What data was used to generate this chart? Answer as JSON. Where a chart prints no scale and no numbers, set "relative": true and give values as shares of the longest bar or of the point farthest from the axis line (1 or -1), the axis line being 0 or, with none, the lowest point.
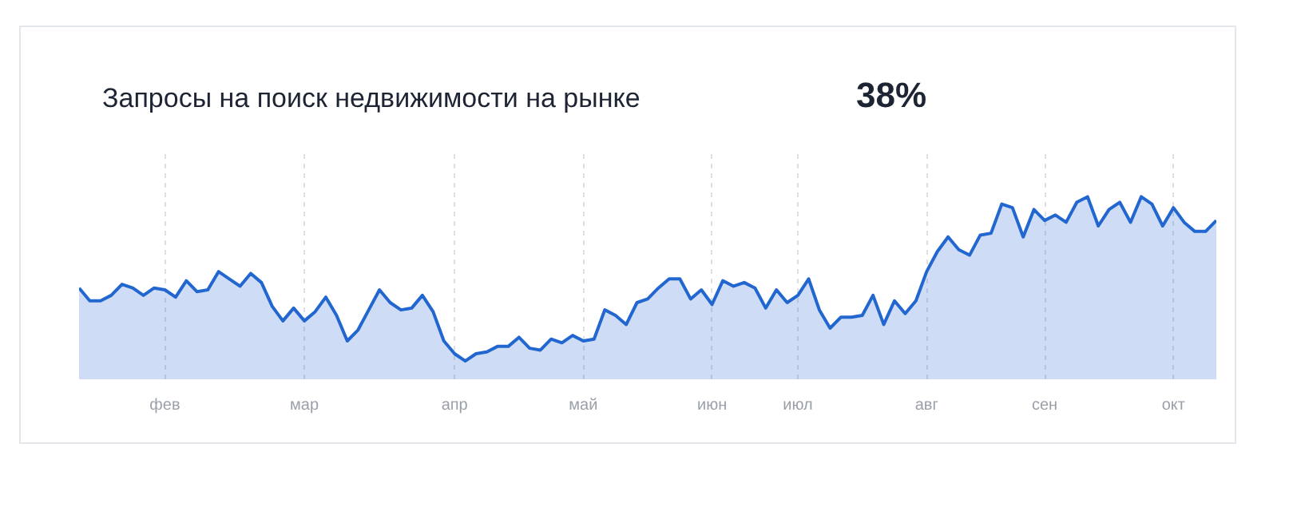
{
  "chart_data": {
    "type": "area",
    "title": "Запросы на поиск недвижимости на рынке",
    "annotations": [
      "38%"
    ],
    "relative": true,
    "grid": "x",
    "categories": [
      null,
      null,
      null,
      null,
      null,
      null,
      null,
      null,
      "фев",
      null,
      null,
      null,
      null,
      null,
      null,
      null,
      null,
      null,
      null,
      null,
      null,
      "мар",
      null,
      null,
      null,
      null,
      null,
      null,
      null,
      null,
      null,
      null,
      null,
      null,
      null,
      "апр",
      null,
      null,
      null,
      null,
      null,
      null,
      null,
      null,
      null,
      null,
      null,
      "май",
      null,
      null,
      null,
      null,
      null,
      null,
      null,
      null,
      null,
      null,
      null,
      "июн",
      null,
      null,
      null,
      null,
      null,
      null,
      null,
      "июл",
      null,
      null,
      null,
      null,
      null,
      null,
      null,
      null,
      null,
      null,
      null,
      "авг",
      null,
      null,
      null,
      null,
      null,
      null,
      null,
      null,
      null,
      null,
      "сен",
      null,
      null,
      null,
      null,
      null,
      null,
      null,
      null,
      null,
      null,
      null,
      "окт",
      null,
      null,
      null,
      null
    ],
    "series": [
      {
        "color": "#2266d0",
        "values": [
          0.5,
          0.43,
          0.43,
          0.46,
          0.52,
          0.5,
          0.46,
          0.5,
          0.49,
          0.45,
          0.54,
          0.48,
          0.49,
          0.59,
          0.55,
          0.51,
          0.58,
          0.53,
          0.4,
          0.32,
          0.39,
          0.32,
          0.37,
          0.45,
          0.35,
          0.21,
          0.27,
          0.38,
          0.49,
          0.42,
          0.38,
          0.39,
          0.46,
          0.37,
          0.21,
          0.14,
          0.1,
          0.14,
          0.15,
          0.18,
          0.18,
          0.23,
          0.17,
          0.16,
          0.22,
          0.2,
          0.24,
          0.21,
          0.22,
          0.38,
          0.35,
          0.3,
          0.42,
          0.44,
          0.5,
          0.55,
          0.55,
          0.44,
          0.49,
          0.41,
          0.54,
          0.51,
          0.53,
          0.5,
          0.39,
          0.49,
          0.42,
          0.46,
          0.55,
          0.38,
          0.28,
          0.34,
          0.34,
          0.35,
          0.46,
          0.3,
          0.43,
          0.36,
          0.43,
          0.59,
          0.7,
          0.78,
          0.71,
          0.68,
          0.79,
          0.8,
          0.96,
          0.94,
          0.78,
          0.93,
          0.87,
          0.9,
          0.86,
          0.97,
          1.0,
          0.84,
          0.93,
          0.97,
          0.86,
          1.0,
          0.96,
          0.84,
          0.94,
          0.86,
          0.81,
          0.81,
          0.87
        ]
      }
    ]
  }
}
